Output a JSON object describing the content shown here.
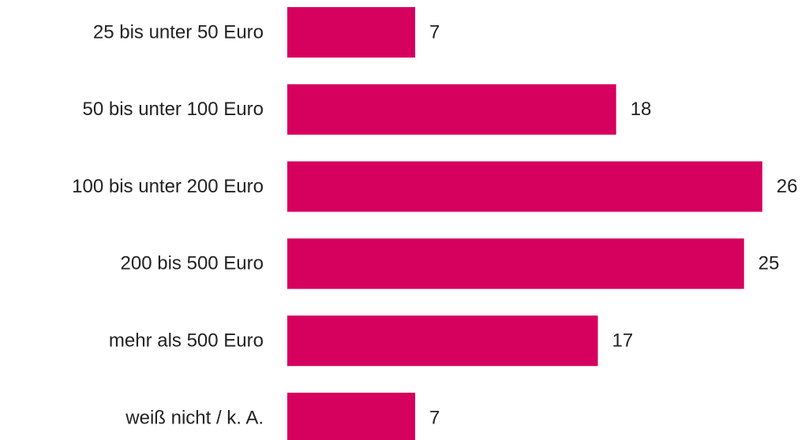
{
  "chart_data": {
    "type": "bar",
    "orientation": "horizontal",
    "categories": [
      "25 bis unter 50 Euro",
      "50 bis unter 100 Euro",
      "100 bis unter 200 Euro",
      "200 bis 500 Euro",
      "mehr als 500 Euro",
      "weiß nicht / k. A."
    ],
    "values": [
      7,
      18,
      26,
      25,
      17,
      7
    ],
    "color": "#d6005f"
  }
}
